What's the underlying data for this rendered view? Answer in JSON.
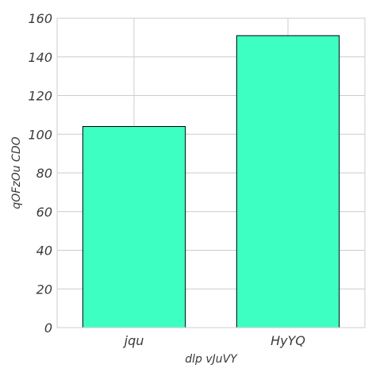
{
  "chart_data": {
    "type": "bar",
    "categories": [
      "jqu",
      "HyYQ"
    ],
    "values": [
      104,
      151
    ],
    "title": "",
    "xlabel": "dlp vJuVY",
    "ylabel": "qOFzOu CDO",
    "ylim": [
      0,
      160
    ],
    "yticks": [
      0,
      20,
      40,
      60,
      80,
      100,
      120,
      140,
      160
    ],
    "grid": true,
    "bar_color": "#3dffc2",
    "bar_edge_color": "#000000",
    "grid_color": "#cccccc",
    "text_color": "#3a3a3a"
  }
}
